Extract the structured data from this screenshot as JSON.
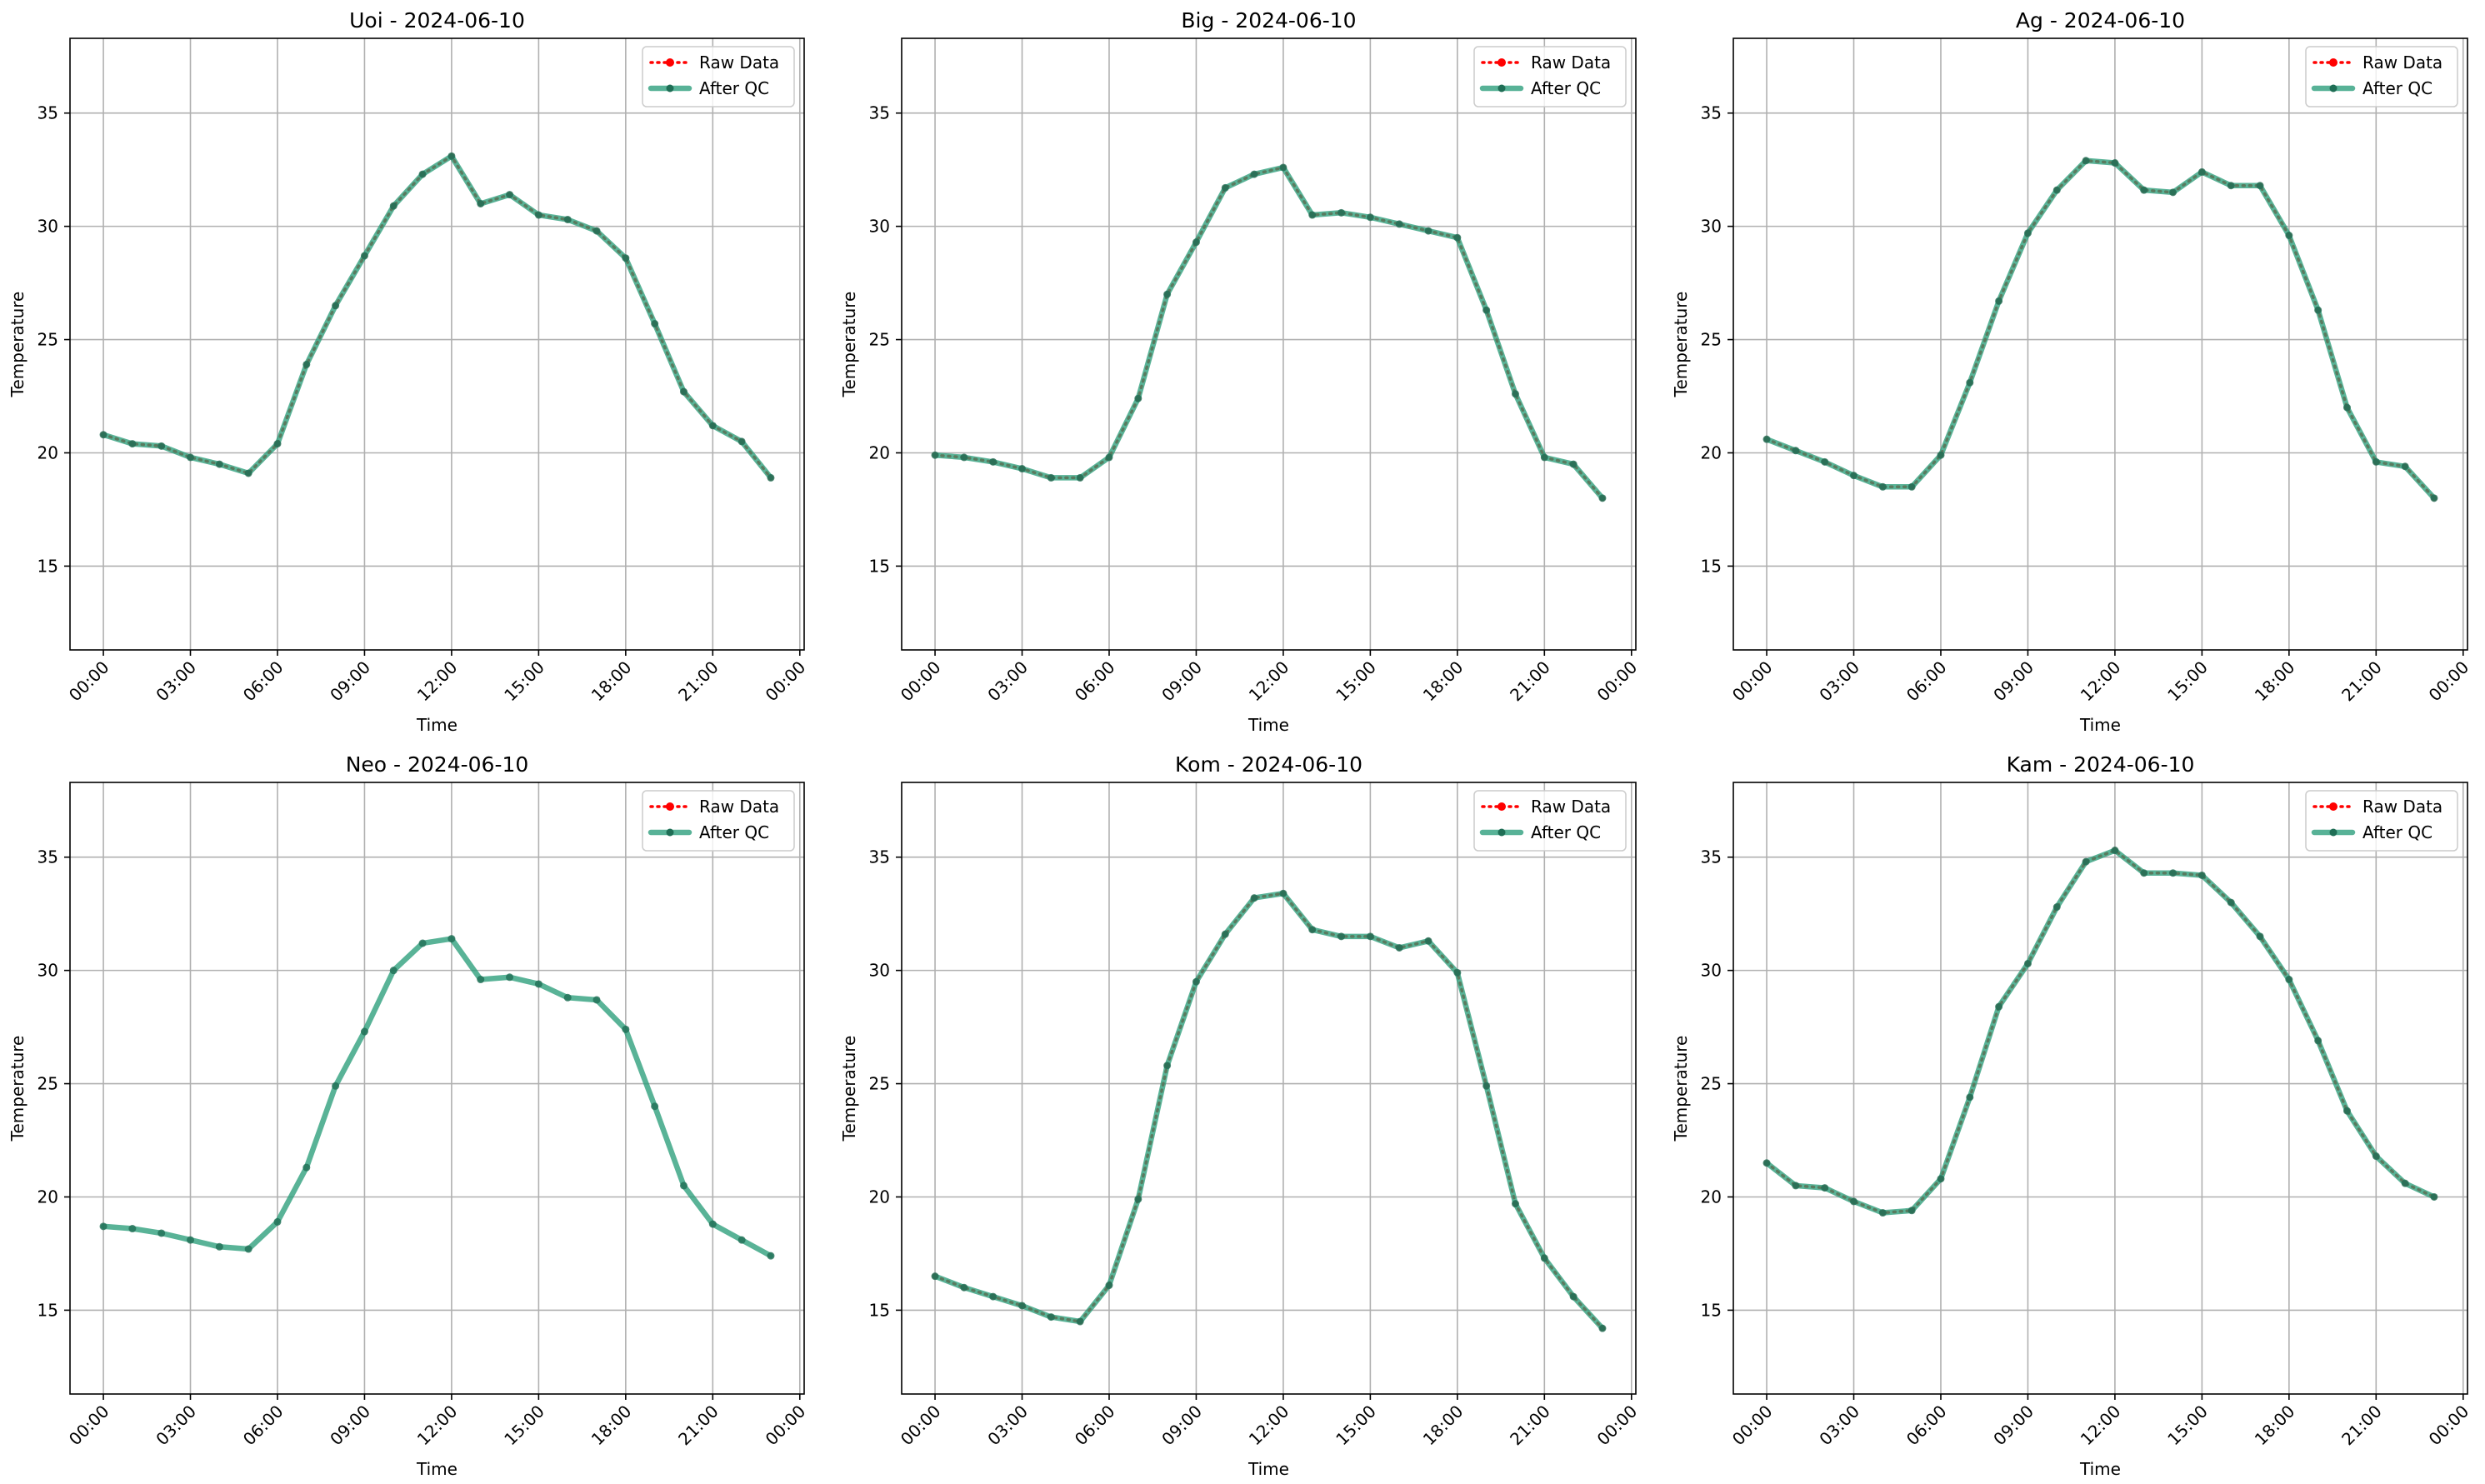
{
  "chart_data": [
    {
      "type": "line",
      "title": "Uoi - 2024-06-10",
      "xlabel": "Time",
      "ylabel": "Temperature",
      "x": [
        0,
        1,
        2,
        3,
        4,
        5,
        6,
        7,
        8,
        9,
        10,
        11,
        12,
        13,
        14,
        15,
        16,
        17,
        18,
        19,
        20,
        21,
        22,
        23
      ],
      "xlim": [
        -1.15,
        24.15
      ],
      "xticks": [
        {
          "value": 0,
          "label": "00:00"
        },
        {
          "value": 3,
          "label": "03:00"
        },
        {
          "value": 6,
          "label": "06:00"
        },
        {
          "value": 9,
          "label": "09:00"
        },
        {
          "value": 12,
          "label": "12:00"
        },
        {
          "value": 15,
          "label": "15:00"
        },
        {
          "value": 18,
          "label": "18:00"
        },
        {
          "value": 21,
          "label": "21:00"
        },
        {
          "value": 24,
          "label": "00:00"
        }
      ],
      "ylim": [
        11.3,
        38.3
      ],
      "yticks": [
        15,
        20,
        25,
        30,
        35
      ],
      "grid": true,
      "legend": "upper right",
      "series": [
        {
          "name": "Raw Data",
          "color": "#ff0000",
          "values": [
            20.8,
            20.4,
            20.3,
            19.8,
            19.5,
            19.1,
            20.4,
            23.9,
            26.5,
            28.7,
            30.9,
            32.3,
            33.1,
            31.0,
            31.4,
            30.5,
            30.3,
            29.8,
            28.6,
            25.7,
            22.7,
            21.2,
            20.5,
            18.9
          ]
        },
        {
          "name": "After QC",
          "color": "#2a9d7a",
          "values": [
            20.8,
            20.4,
            20.3,
            19.8,
            19.5,
            19.1,
            20.4,
            23.9,
            26.5,
            28.7,
            30.9,
            32.3,
            33.1,
            31.0,
            31.4,
            30.5,
            30.3,
            29.8,
            28.6,
            25.7,
            22.7,
            21.2,
            20.5,
            18.9
          ]
        }
      ]
    },
    {
      "type": "line",
      "title": "Big - 2024-06-10",
      "xlabel": "Time",
      "ylabel": "Temperature",
      "x": [
        0,
        1,
        2,
        3,
        4,
        5,
        6,
        7,
        8,
        9,
        10,
        11,
        12,
        13,
        14,
        15,
        16,
        17,
        18,
        19,
        20,
        21,
        22,
        23
      ],
      "xlim": [
        -1.15,
        24.15
      ],
      "xticks": [
        {
          "value": 0,
          "label": "00:00"
        },
        {
          "value": 3,
          "label": "03:00"
        },
        {
          "value": 6,
          "label": "06:00"
        },
        {
          "value": 9,
          "label": "09:00"
        },
        {
          "value": 12,
          "label": "12:00"
        },
        {
          "value": 15,
          "label": "15:00"
        },
        {
          "value": 18,
          "label": "18:00"
        },
        {
          "value": 21,
          "label": "21:00"
        },
        {
          "value": 24,
          "label": "00:00"
        }
      ],
      "ylim": [
        11.3,
        38.3
      ],
      "yticks": [
        15,
        20,
        25,
        30,
        35
      ],
      "grid": true,
      "legend": "upper right",
      "series": [
        {
          "name": "Raw Data",
          "color": "#ff0000",
          "values": [
            19.9,
            19.8,
            19.6,
            19.3,
            18.9,
            18.9,
            19.8,
            22.4,
            27.0,
            29.3,
            31.7,
            32.3,
            32.6,
            30.5,
            30.6,
            30.4,
            30.1,
            29.8,
            29.5,
            26.3,
            22.6,
            19.8,
            19.5,
            18.0
          ]
        },
        {
          "name": "After QC",
          "color": "#2a9d7a",
          "values": [
            19.9,
            19.8,
            19.6,
            19.3,
            18.9,
            18.9,
            19.8,
            22.4,
            27.0,
            29.3,
            31.7,
            32.3,
            32.6,
            30.5,
            30.6,
            30.4,
            30.1,
            29.8,
            29.5,
            26.3,
            22.6,
            19.8,
            19.5,
            18.0
          ]
        }
      ]
    },
    {
      "type": "line",
      "title": "Ag - 2024-06-10",
      "xlabel": "Time",
      "ylabel": "Temperature",
      "x": [
        0,
        1,
        2,
        3,
        4,
        5,
        6,
        7,
        8,
        9,
        10,
        11,
        12,
        13,
        14,
        15,
        16,
        17,
        18,
        19,
        20,
        21,
        22,
        23
      ],
      "xlim": [
        -1.15,
        24.15
      ],
      "xticks": [
        {
          "value": 0,
          "label": "00:00"
        },
        {
          "value": 3,
          "label": "03:00"
        },
        {
          "value": 6,
          "label": "06:00"
        },
        {
          "value": 9,
          "label": "09:00"
        },
        {
          "value": 12,
          "label": "12:00"
        },
        {
          "value": 15,
          "label": "15:00"
        },
        {
          "value": 18,
          "label": "18:00"
        },
        {
          "value": 21,
          "label": "21:00"
        },
        {
          "value": 24,
          "label": "00:00"
        }
      ],
      "ylim": [
        11.3,
        38.3
      ],
      "yticks": [
        15,
        20,
        25,
        30,
        35
      ],
      "grid": true,
      "legend": "upper right",
      "series": [
        {
          "name": "Raw Data",
          "color": "#ff0000",
          "values": [
            20.6,
            20.1,
            19.6,
            19.0,
            18.5,
            18.5,
            19.9,
            23.1,
            26.7,
            29.7,
            31.6,
            32.9,
            32.8,
            31.6,
            31.5,
            32.4,
            31.8,
            31.8,
            29.6,
            26.3,
            22.0,
            19.6,
            19.4,
            18.0
          ]
        },
        {
          "name": "After QC",
          "color": "#2a9d7a",
          "values": [
            20.6,
            20.1,
            19.6,
            19.0,
            18.5,
            18.5,
            19.9,
            23.1,
            26.7,
            29.7,
            31.6,
            32.9,
            32.8,
            31.6,
            31.5,
            32.4,
            31.8,
            31.8,
            29.6,
            26.3,
            22.0,
            19.6,
            19.4,
            18.0
          ]
        }
      ]
    },
    {
      "type": "line",
      "title": "Neo - 2024-06-10",
      "xlabel": "Time",
      "ylabel": "Temperature",
      "x": [
        0,
        1,
        2,
        3,
        4,
        5,
        6,
        7,
        8,
        9,
        10,
        11,
        12,
        13,
        14,
        15,
        16,
        17,
        18,
        19,
        20,
        21,
        22,
        23
      ],
      "xlim": [
        -1.15,
        24.15
      ],
      "xticks": [
        {
          "value": 0,
          "label": "00:00"
        },
        {
          "value": 3,
          "label": "03:00"
        },
        {
          "value": 6,
          "label": "06:00"
        },
        {
          "value": 9,
          "label": "09:00"
        },
        {
          "value": 12,
          "label": "12:00"
        },
        {
          "value": 15,
          "label": "15:00"
        },
        {
          "value": 18,
          "label": "18:00"
        },
        {
          "value": 21,
          "label": "21:00"
        },
        {
          "value": 24,
          "label": "00:00"
        }
      ],
      "ylim": [
        11.3,
        38.3
      ],
      "yticks": [
        15,
        20,
        25,
        30,
        35
      ],
      "grid": true,
      "legend": "upper right",
      "series": [
        {
          "name": "Raw Data",
          "color": "#ff0000",
          "values": [
            null,
            null,
            null,
            null,
            null,
            null,
            null,
            null,
            null,
            null,
            null,
            null,
            null,
            null,
            null,
            null,
            null,
            null,
            null,
            null,
            null,
            null,
            null,
            null
          ]
        },
        {
          "name": "After QC",
          "color": "#2a9d7a",
          "values": [
            18.7,
            18.6,
            18.4,
            18.1,
            17.8,
            17.7,
            18.9,
            21.3,
            24.9,
            27.3,
            30.0,
            31.2,
            31.4,
            29.6,
            29.7,
            29.4,
            28.8,
            28.7,
            27.4,
            24.0,
            20.5,
            18.8,
            18.1,
            17.4
          ]
        }
      ]
    },
    {
      "type": "line",
      "title": "Kom - 2024-06-10",
      "xlabel": "Time",
      "ylabel": "Temperature",
      "x": [
        0,
        1,
        2,
        3,
        4,
        5,
        6,
        7,
        8,
        9,
        10,
        11,
        12,
        13,
        14,
        15,
        16,
        17,
        18,
        19,
        20,
        21,
        22,
        23
      ],
      "xlim": [
        -1.15,
        24.15
      ],
      "xticks": [
        {
          "value": 0,
          "label": "00:00"
        },
        {
          "value": 3,
          "label": "03:00"
        },
        {
          "value": 6,
          "label": "06:00"
        },
        {
          "value": 9,
          "label": "09:00"
        },
        {
          "value": 12,
          "label": "12:00"
        },
        {
          "value": 15,
          "label": "15:00"
        },
        {
          "value": 18,
          "label": "18:00"
        },
        {
          "value": 21,
          "label": "21:00"
        },
        {
          "value": 24,
          "label": "00:00"
        }
      ],
      "ylim": [
        11.3,
        38.3
      ],
      "yticks": [
        15,
        20,
        25,
        30,
        35
      ],
      "grid": true,
      "legend": "upper right",
      "series": [
        {
          "name": "Raw Data",
          "color": "#ff0000",
          "values": [
            16.5,
            16.0,
            15.6,
            15.2,
            14.7,
            14.5,
            16.1,
            19.9,
            25.8,
            29.5,
            31.6,
            33.2,
            33.4,
            31.8,
            31.5,
            31.5,
            31.0,
            31.3,
            29.9,
            24.9,
            19.7,
            17.3,
            15.6,
            14.2
          ]
        },
        {
          "name": "After QC",
          "color": "#2a9d7a",
          "values": [
            16.5,
            16.0,
            15.6,
            15.2,
            14.7,
            14.5,
            16.1,
            19.9,
            25.8,
            29.5,
            31.6,
            33.2,
            33.4,
            31.8,
            31.5,
            31.5,
            31.0,
            31.3,
            29.9,
            24.9,
            19.7,
            17.3,
            15.6,
            14.2
          ]
        }
      ]
    },
    {
      "type": "line",
      "title": "Kam - 2024-06-10",
      "xlabel": "Time",
      "ylabel": "Temperature",
      "x": [
        0,
        1,
        2,
        3,
        4,
        5,
        6,
        7,
        8,
        9,
        10,
        11,
        12,
        13,
        14,
        15,
        16,
        17,
        18,
        19,
        20,
        21,
        22,
        23
      ],
      "xlim": [
        -1.15,
        24.15
      ],
      "xticks": [
        {
          "value": 0,
          "label": "00:00"
        },
        {
          "value": 3,
          "label": "03:00"
        },
        {
          "value": 6,
          "label": "06:00"
        },
        {
          "value": 9,
          "label": "09:00"
        },
        {
          "value": 12,
          "label": "12:00"
        },
        {
          "value": 15,
          "label": "15:00"
        },
        {
          "value": 18,
          "label": "18:00"
        },
        {
          "value": 21,
          "label": "21:00"
        },
        {
          "value": 24,
          "label": "00:00"
        }
      ],
      "ylim": [
        11.3,
        38.3
      ],
      "yticks": [
        15,
        20,
        25,
        30,
        35
      ],
      "grid": true,
      "legend": "upper right",
      "series": [
        {
          "name": "Raw Data",
          "color": "#ff0000",
          "values": [
            21.5,
            20.5,
            20.4,
            19.8,
            19.3,
            19.4,
            20.8,
            24.4,
            28.4,
            30.3,
            32.8,
            34.8,
            35.3,
            34.3,
            34.3,
            34.2,
            33.0,
            31.5,
            29.6,
            26.9,
            23.8,
            21.8,
            20.6,
            20.0
          ]
        },
        {
          "name": "After QC",
          "color": "#2a9d7a",
          "values": [
            21.5,
            20.5,
            20.4,
            19.8,
            19.3,
            19.4,
            20.8,
            24.4,
            28.4,
            30.3,
            32.8,
            34.8,
            35.3,
            34.3,
            34.3,
            34.2,
            33.0,
            31.5,
            29.6,
            26.9,
            23.8,
            21.8,
            20.6,
            20.0
          ]
        }
      ]
    }
  ]
}
